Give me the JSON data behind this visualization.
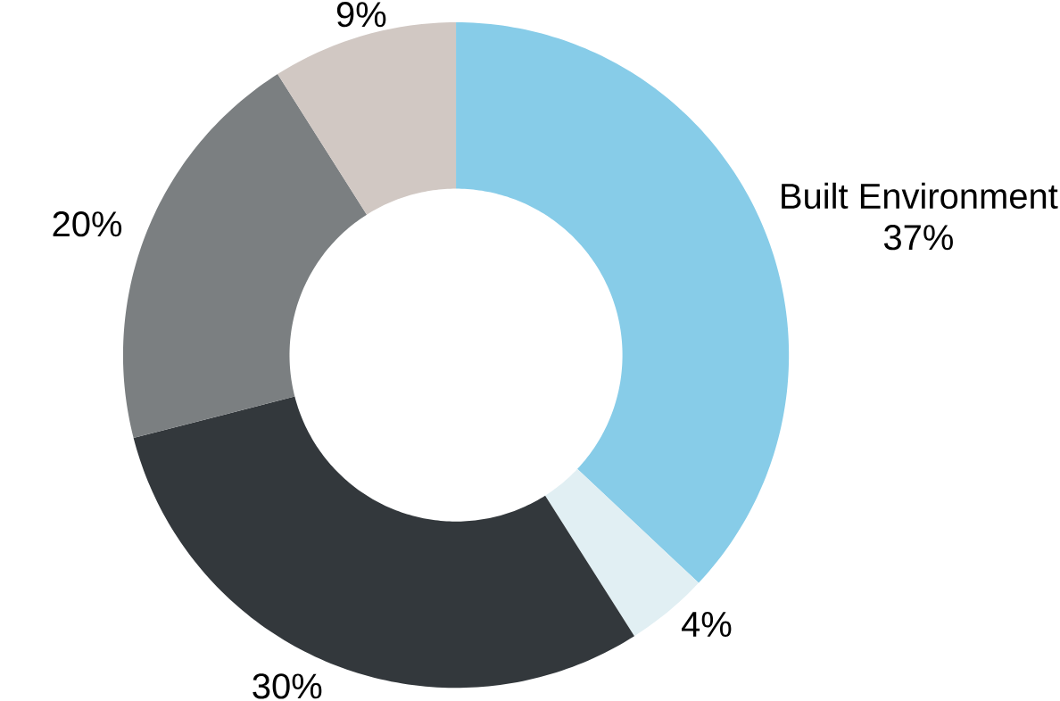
{
  "chart_data": {
    "type": "donut",
    "categories": [
      "Built Environment",
      null,
      null,
      null,
      null
    ],
    "values": [
      37,
      4,
      30,
      20,
      9
    ],
    "value_labels": [
      "37%",
      "4%",
      "30%",
      "20%",
      "9%"
    ],
    "colors": [
      "#87cce8",
      "#e1eff3",
      "#33383c",
      "#7b7f81",
      "#d1c8c3"
    ]
  }
}
